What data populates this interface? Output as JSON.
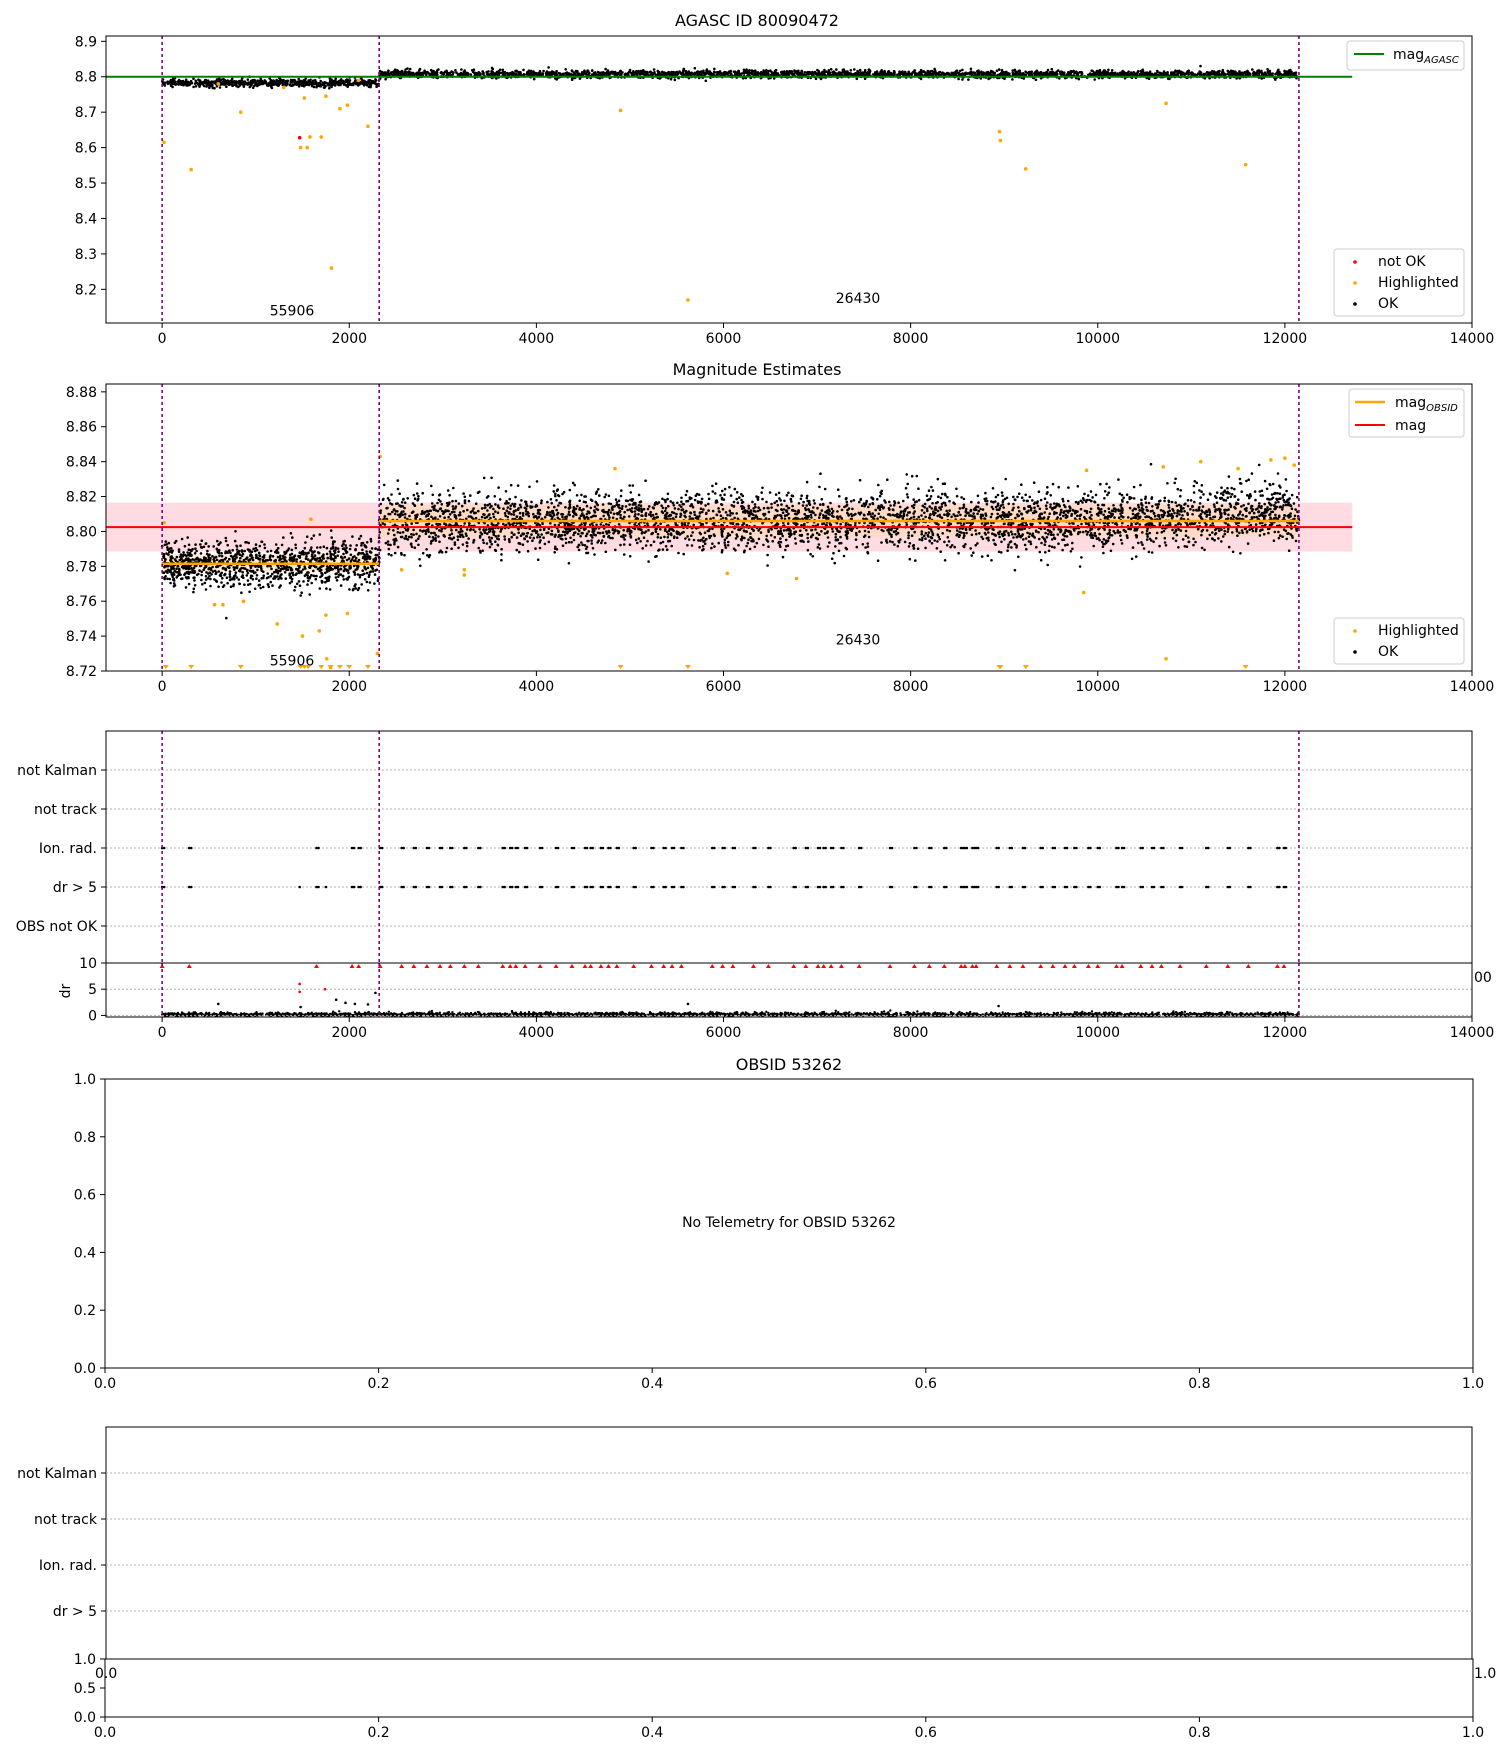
{
  "colors": {
    "ok": "#000000",
    "highlighted": "#ffa500",
    "not_ok": "#ff0000",
    "mag_agasc": "#008000",
    "mag_obsid": "#ffa500",
    "mag": "#ff0000",
    "obs_boundary": "#800080",
    "band_mag": "#ffc0cb",
    "band_obsid": "#ffd8a8"
  },
  "chart_data": [
    {
      "id": "agasc",
      "type": "scatter",
      "title": "AGASC ID 80090472",
      "xlabel": "",
      "ylabel": "",
      "xlim": [
        -600,
        14000
      ],
      "ylim": [
        8.105,
        8.915
      ],
      "xticks": [
        0,
        2000,
        4000,
        6000,
        8000,
        10000,
        12000,
        14000
      ],
      "yticks": [
        8.2,
        8.3,
        8.4,
        8.5,
        8.6,
        8.7,
        8.8,
        8.9
      ],
      "obs_boundaries": [
        0,
        2320,
        12150
      ],
      "obs_labels": [
        {
          "text": "55906",
          "x": 1150,
          "y": 8.14
        },
        {
          "text": "26430",
          "x": 7200,
          "y": 8.175
        }
      ],
      "segments": [
        {
          "x0": 0,
          "x1": 2320,
          "center": 8.782,
          "spread": 0.012
        },
        {
          "x0": 2320,
          "x1": 12150,
          "center": 8.807,
          "spread": 0.012
        }
      ],
      "lines": [
        {
          "name": "mag_AGASC",
          "y": 8.8,
          "x0": -600,
          "x1": 12720,
          "color": "#008000"
        }
      ],
      "highlighted_points": [
        [
          20,
          8.615
        ],
        [
          310,
          8.538
        ],
        [
          840,
          8.7
        ],
        [
          1480,
          8.6
        ],
        [
          1550,
          8.6
        ],
        [
          1520,
          8.74
        ],
        [
          1700,
          8.63
        ],
        [
          1750,
          8.745
        ],
        [
          1810,
          8.26
        ],
        [
          1900,
          8.71
        ],
        [
          1980,
          8.72
        ],
        [
          2200,
          8.66
        ],
        [
          1580,
          8.63
        ],
        [
          4900,
          8.705
        ],
        [
          5620,
          8.17
        ],
        [
          8950,
          8.645
        ],
        [
          8960,
          8.62
        ],
        [
          9230,
          8.54
        ],
        [
          10730,
          8.725
        ],
        [
          11580,
          8.552
        ],
        [
          1300,
          8.77
        ],
        [
          600,
          8.78
        ],
        [
          2100,
          8.79
        ]
      ],
      "not_ok_points": [
        [
          1470,
          8.628
        ]
      ],
      "legend_upper": [
        {
          "label": "mag_AGASC",
          "color": "#008000",
          "kind": "line"
        }
      ],
      "legend_lower": [
        {
          "label": "not OK",
          "color": "#ff0000",
          "kind": "dot"
        },
        {
          "label": "Highlighted",
          "color": "#ffa500",
          "kind": "dot"
        },
        {
          "label": "OK",
          "color": "#000000",
          "kind": "dot"
        }
      ]
    },
    {
      "id": "estimates",
      "type": "scatter",
      "title": "Magnitude Estimates",
      "xlabel": "",
      "ylabel": "",
      "xlim": [
        -600,
        14000
      ],
      "ylim": [
        8.72,
        8.8845
      ],
      "xticks": [
        0,
        2000,
        4000,
        6000,
        8000,
        10000,
        12000,
        14000
      ],
      "yticks": [
        8.72,
        8.74,
        8.76,
        8.78,
        8.8,
        8.82,
        8.84,
        8.86,
        8.88
      ],
      "obs_boundaries": [
        0,
        2320,
        12150
      ],
      "obs_labels": [
        {
          "text": "55906",
          "x": 1150,
          "y": 8.726
        },
        {
          "text": "26430",
          "x": 7200,
          "y": 8.738
        }
      ],
      "segments": [
        {
          "x0": 0,
          "x1": 2320,
          "center": 8.7815,
          "spread": 0.0065
        },
        {
          "x0": 2320,
          "x1": 12150,
          "center": 8.806,
          "spread": 0.0085
        }
      ],
      "bands": [
        {
          "x0": -600,
          "x1": 12720,
          "y0": 8.7885,
          "y1": 8.8165,
          "color": "#ffc0cb",
          "opacity": 0.55
        },
        {
          "x0": 0,
          "x1": 2320,
          "y0": 8.777,
          "y1": 8.787,
          "color": "#ffd8a8",
          "opacity": 0.5
        },
        {
          "x0": 2320,
          "x1": 12150,
          "y0": 8.797,
          "y1": 8.815,
          "color": "#ffd8a8",
          "opacity": 0.5
        }
      ],
      "lines": [
        {
          "name": "mag",
          "y": 8.8025,
          "x0": -600,
          "x1": 12720,
          "color": "#ff0000"
        },
        {
          "name": "mag_OBSID",
          "y": 8.7815,
          "x0": 0,
          "x1": 2320,
          "color": "#ffa500"
        },
        {
          "name": "mag_OBSID",
          "y": 8.806,
          "x0": 2320,
          "x1": 12150,
          "color": "#ffa500"
        }
      ],
      "highlighted_points": [
        [
          20,
          8.805
        ],
        [
          650,
          8.758
        ],
        [
          560,
          8.758
        ],
        [
          870,
          8.76
        ],
        [
          1230,
          8.747
        ],
        [
          1500,
          8.74
        ],
        [
          1680,
          8.743
        ],
        [
          1750,
          8.752
        ],
        [
          1980,
          8.753
        ],
        [
          1590,
          8.807
        ],
        [
          1760,
          8.727
        ],
        [
          1800,
          8.722
        ],
        [
          2300,
          8.73
        ],
        [
          2330,
          8.843
        ],
        [
          2560,
          8.778
        ],
        [
          3230,
          8.775
        ],
        [
          3230,
          8.778
        ],
        [
          4840,
          8.836
        ],
        [
          6040,
          8.776
        ],
        [
          6780,
          8.773
        ],
        [
          9850,
          8.765
        ],
        [
          9880,
          8.835
        ],
        [
          10730,
          8.727
        ],
        [
          10700,
          8.837
        ],
        [
          11100,
          8.84
        ],
        [
          11500,
          8.836
        ],
        [
          11850,
          8.841
        ],
        [
          12000,
          8.842
        ],
        [
          12100,
          8.838
        ]
      ],
      "clipped_points_x": [
        40,
        310,
        840,
        1480,
        1520,
        1560,
        1700,
        1800,
        1900,
        2000,
        2200,
        4900,
        5620,
        8950,
        8960,
        9230,
        11580
      ],
      "legend_upper": [
        {
          "label": "mag_OBSID",
          "color": "#ffa500",
          "kind": "line"
        },
        {
          "label": "mag",
          "color": "#ff0000",
          "kind": "line"
        }
      ],
      "legend_lower": [
        {
          "label": "Highlighted",
          "color": "#ffa500",
          "kind": "dot"
        },
        {
          "label": "OK",
          "color": "#000000",
          "kind": "dot"
        }
      ]
    },
    {
      "id": "flags",
      "type": "scatter",
      "title": "",
      "xlim": [
        -600,
        14000
      ],
      "xticks": [
        0,
        2000,
        4000,
        6000,
        8000,
        10000,
        12000,
        14000
      ],
      "categories": [
        "not Kalman",
        "not track",
        "Ion. rad.",
        "dr > 5",
        "OBS not OK"
      ],
      "obs_boundaries": [
        0,
        2320,
        12150
      ],
      "flag_x": [
        0,
        290,
        1650,
        2030,
        2100,
        2330,
        2560,
        2690,
        2830,
        2970,
        3080,
        3230,
        3380,
        3640,
        3720,
        3780,
        3880,
        4040,
        4210,
        4380,
        4520,
        4580,
        4690,
        4770,
        4860,
        5040,
        5230,
        5360,
        5450,
        5550,
        5880,
        5990,
        6100,
        6320,
        6480,
        6750,
        6880,
        7010,
        7070,
        7150,
        7260,
        7450,
        7780,
        8040,
        8200,
        8360,
        8540,
        8580,
        8660,
        8700,
        8920,
        9060,
        9200,
        9390,
        9520,
        9650,
        9750,
        9900,
        10000,
        10200,
        10260,
        10460,
        10580,
        10680,
        10880,
        11160,
        11390,
        11610,
        11920,
        11990
      ],
      "dr5_extra_x": [
        1470,
        1750
      ]
    },
    {
      "id": "dr",
      "type": "scatter",
      "title": "",
      "ylabel": "dr",
      "xlim": [
        -600,
        14000
      ],
      "ylim": [
        -0.3,
        10
      ],
      "xticks": [
        0,
        2000,
        4000,
        6000,
        8000,
        10000,
        12000,
        14000
      ],
      "yticks": [
        0,
        5,
        10
      ],
      "obs_boundaries": [
        0,
        2320,
        12150
      ],
      "spike_points": [
        [
          1470,
          6
        ],
        [
          1470,
          4.5
        ],
        [
          1740,
          5
        ],
        [
          600,
          2.2
        ],
        [
          1480,
          1.6
        ],
        [
          1860,
          3
        ],
        [
          1960,
          2.4
        ],
        [
          2060,
          2.2
        ],
        [
          2200,
          2.1
        ],
        [
          2280,
          4.3
        ],
        [
          5620,
          2.2
        ],
        [
          8940,
          1.8
        ]
      ]
    },
    {
      "id": "obsid",
      "type": "scatter",
      "title": "OBSID 53262",
      "annotation": "No Telemetry for OBSID 53262",
      "xlim": [
        0,
        1
      ],
      "ylim": [
        0,
        1
      ],
      "xticks": [
        "0.0",
        "0.2",
        "0.4",
        "0.6",
        "0.8",
        "1.0"
      ],
      "yticks": [
        "0.0",
        "0.2",
        "0.4",
        "0.6",
        "0.8",
        "1.0"
      ]
    },
    {
      "id": "flags_empty",
      "type": "scatter",
      "title": "",
      "categories": [
        "not Kalman",
        "not track",
        "Ion. rad.",
        "dr > 5"
      ]
    },
    {
      "id": "dr_empty",
      "type": "scatter",
      "title": "",
      "xlim": [
        0,
        1
      ],
      "ylim": [
        0,
        1
      ],
      "xticks": [
        "0.0",
        "0.2",
        "0.4",
        "0.6",
        "0.8",
        "1.0"
      ],
      "yticks": [
        "0.0",
        "0.5",
        "1.0"
      ],
      "edge_labels": [
        "0.0",
        "1.0"
      ]
    }
  ]
}
